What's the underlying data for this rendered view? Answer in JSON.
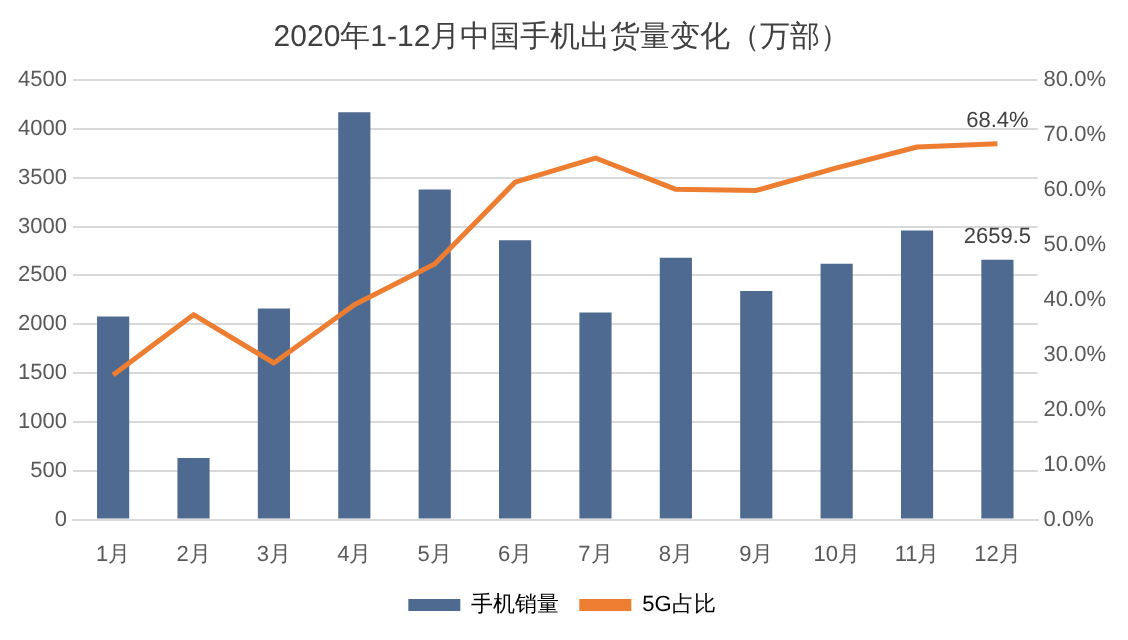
{
  "chart_data": {
    "type": "bar",
    "title": "2020年1-12月中国手机出货量变化（万部）",
    "categories": [
      "1月",
      "2月",
      "3月",
      "4月",
      "5月",
      "6月",
      "7月",
      "8月",
      "9月",
      "10月",
      "11月",
      "12月"
    ],
    "series": [
      {
        "name": "手机销量",
        "color": "#4e6a91",
        "values": [
          2080,
          630,
          2160,
          4170,
          3380,
          2860,
          2120,
          2680,
          2340,
          2620,
          2960,
          2659.5
        ],
        "value_labels": [
          null,
          null,
          null,
          null,
          null,
          null,
          null,
          null,
          null,
          null,
          null,
          "2659.5"
        ]
      },
      {
        "name": "5G占比",
        "type": "line",
        "axis": "y2",
        "color": "#ed7d31",
        "values": [
          26.3,
          37.3,
          28.5,
          39.1,
          46.5,
          61.4,
          65.8,
          60.1,
          59.9,
          64.0,
          67.8,
          68.4
        ],
        "value_labels": [
          null,
          null,
          null,
          null,
          null,
          null,
          null,
          null,
          null,
          null,
          null,
          "68.4%"
        ]
      }
    ],
    "ylim": [
      0,
      4500
    ],
    "yticks": [
      0,
      500,
      1000,
      1500,
      2000,
      2500,
      3000,
      3500,
      4000,
      4500
    ],
    "y2lim": [
      0,
      80
    ],
    "y2ticks": [
      {
        "value": 0,
        "label": "0.0%"
      },
      {
        "value": 10,
        "label": "10.0%"
      },
      {
        "value": 20,
        "label": "20.0%"
      },
      {
        "value": 30,
        "label": "30.0%"
      },
      {
        "value": 40,
        "label": "40.0%"
      },
      {
        "value": 50,
        "label": "50.0%"
      },
      {
        "value": 60,
        "label": "60.0%"
      },
      {
        "value": 70,
        "label": "70.0%"
      },
      {
        "value": 80,
        "label": "80.0%"
      }
    ],
    "grid": "y",
    "legend": "bottom",
    "marker": "none",
    "line_style": "solid"
  }
}
